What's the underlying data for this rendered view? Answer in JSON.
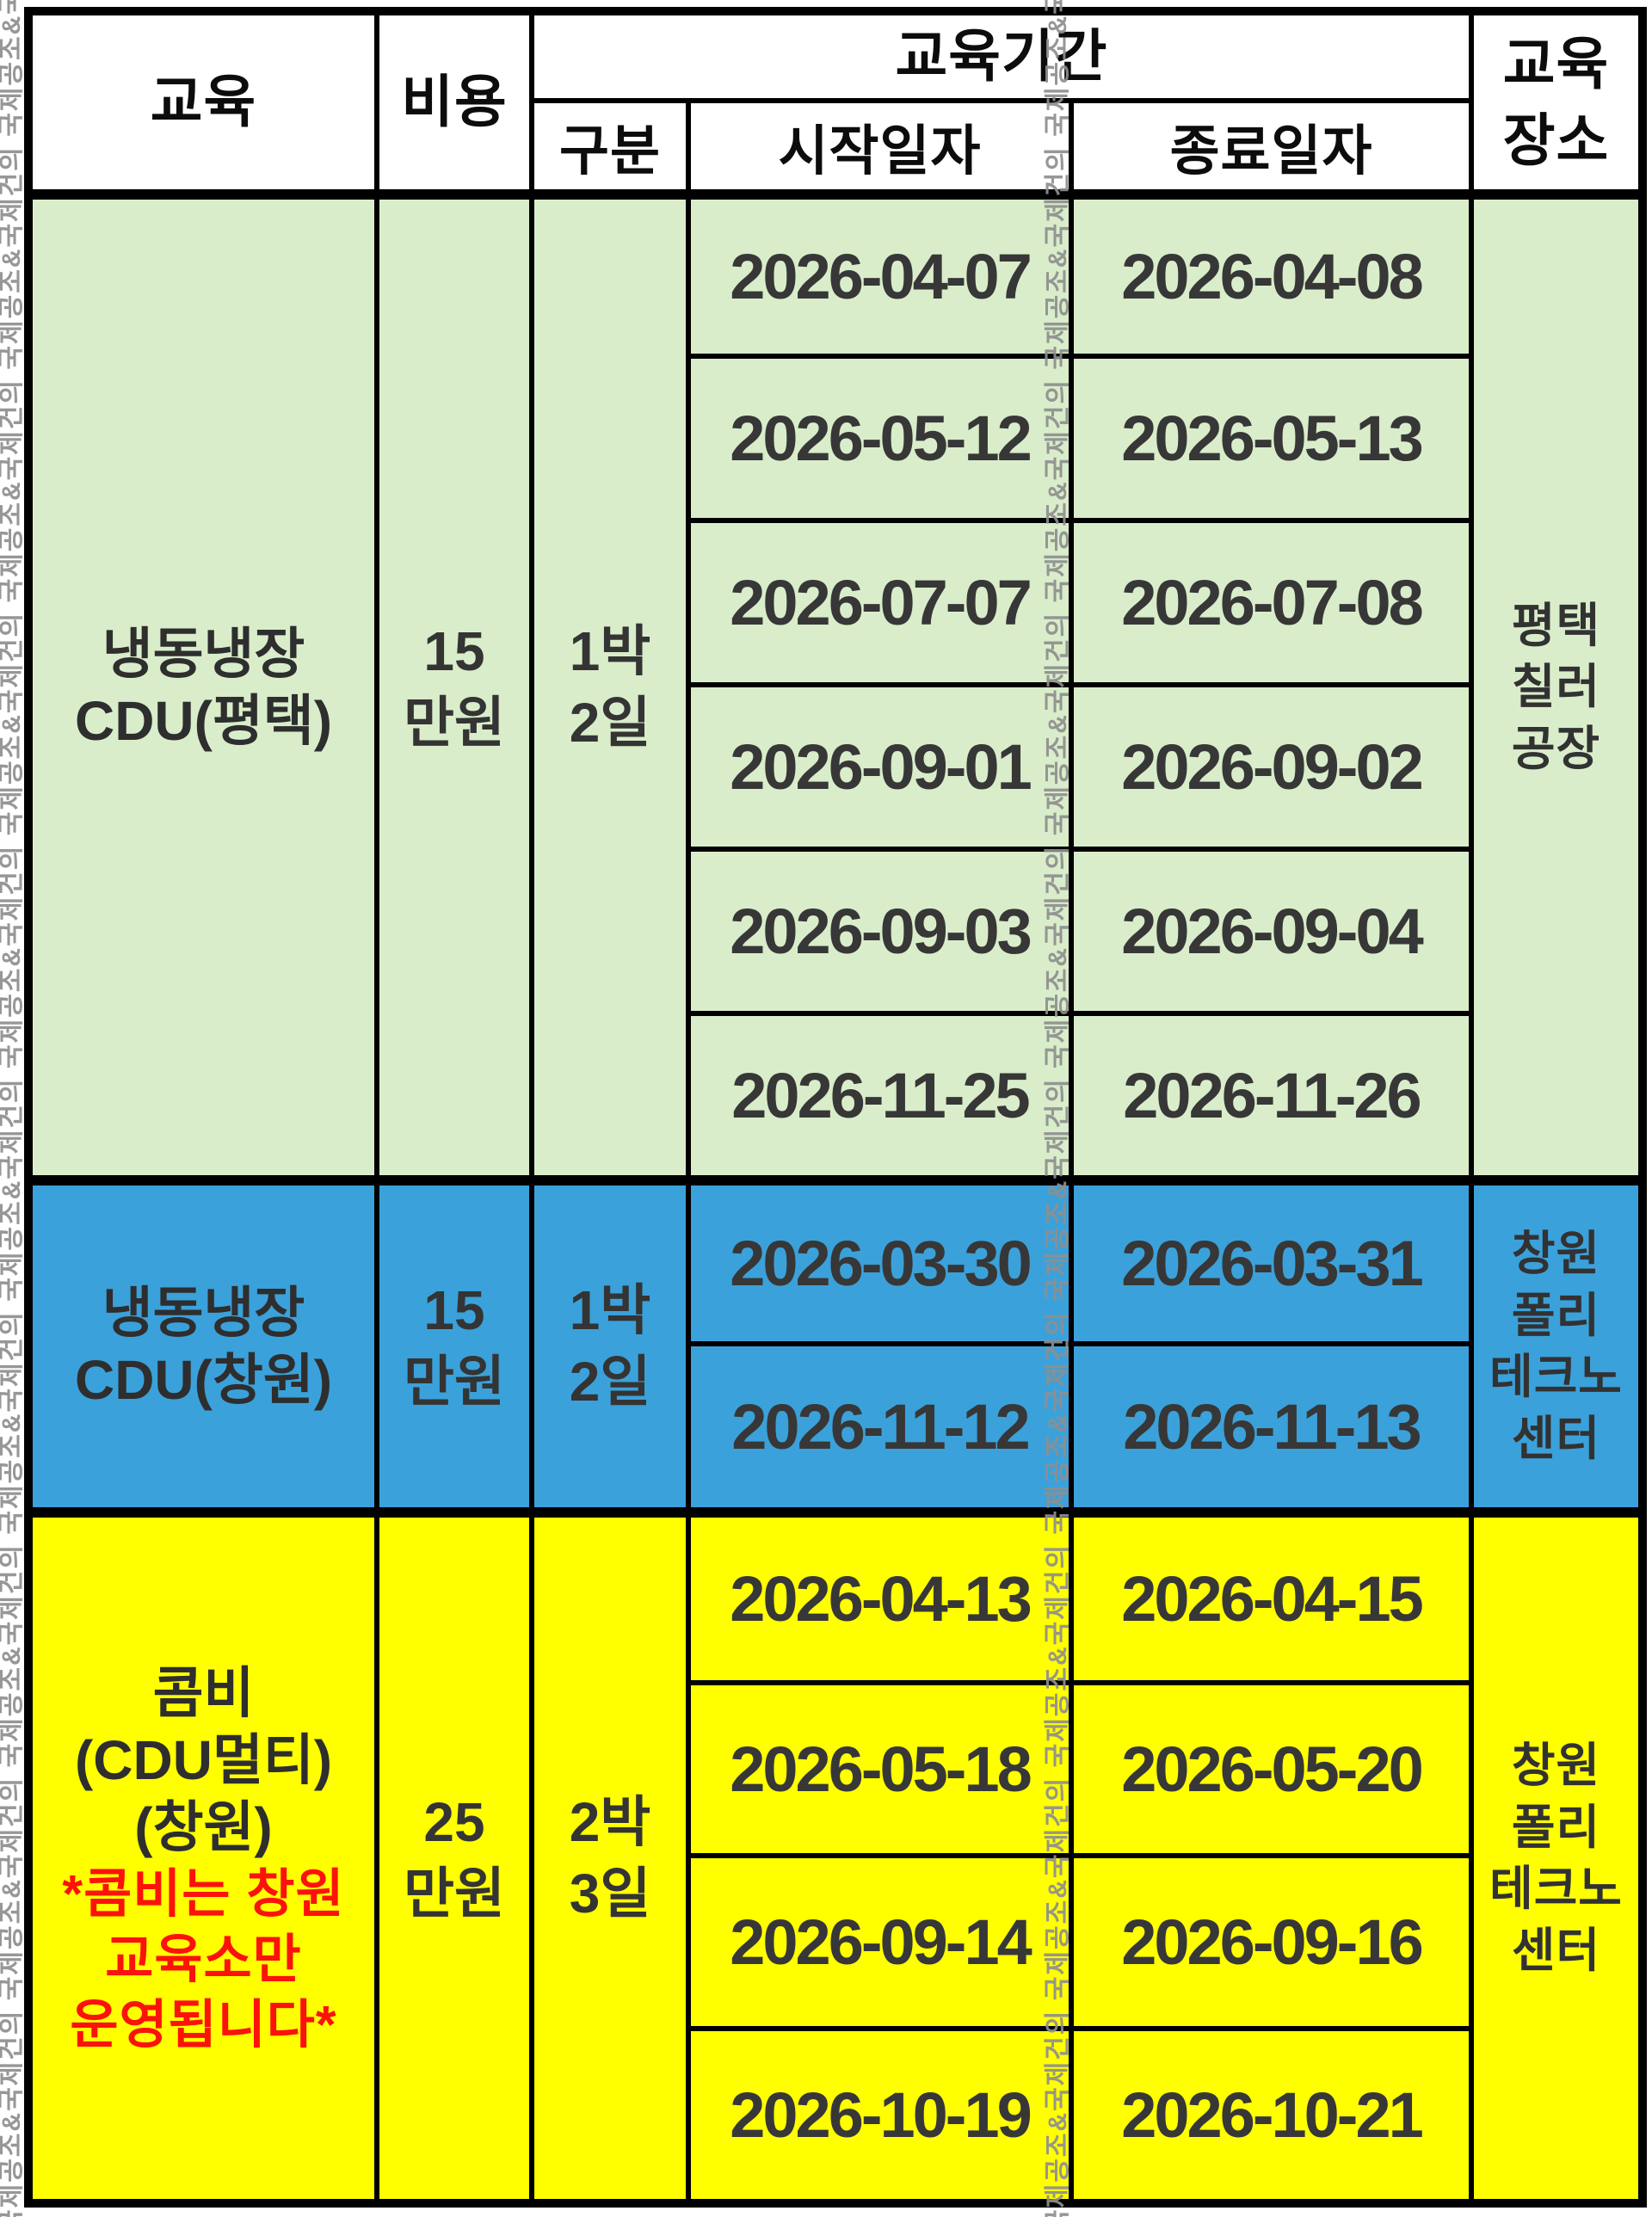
{
  "header": {
    "education": "교육",
    "cost": "비용",
    "period": "교육기간",
    "category": "구분",
    "start_date": "시작일자",
    "end_date": "종료일자",
    "location_line1": "교육",
    "location_line2": "장소"
  },
  "sections": [
    {
      "name_lines": [
        "냉동냉장",
        "CDU(평택)"
      ],
      "cost_lines": [
        "15",
        "만원"
      ],
      "category_lines": [
        "1박",
        "2일"
      ],
      "location_lines": [
        "평택",
        "칠러",
        "공장"
      ],
      "bg": "#d9edca",
      "rows": [
        {
          "start": "2026-04-07",
          "end": "2026-04-08"
        },
        {
          "start": "2026-05-12",
          "end": "2026-05-13"
        },
        {
          "start": "2026-07-07",
          "end": "2026-07-08"
        },
        {
          "start": "2026-09-01",
          "end": "2026-09-02"
        },
        {
          "start": "2026-09-03",
          "end": "2026-09-04"
        },
        {
          "start": "2026-11-25",
          "end": "2026-11-26"
        }
      ]
    },
    {
      "name_lines": [
        "냉동냉장",
        "CDU(창원)"
      ],
      "cost_lines": [
        "15",
        "만원"
      ],
      "category_lines": [
        "1박",
        "2일"
      ],
      "location_lines": [
        "창원",
        "폴리",
        "테크노",
        "센터"
      ],
      "bg": "#3ba1da",
      "rows": [
        {
          "start": "2026-03-30",
          "end": "2026-03-31"
        },
        {
          "start": "2026-11-12",
          "end": "2026-11-13"
        }
      ]
    },
    {
      "name_lines": [
        "콤비",
        "(CDU멀티)",
        "(창원)"
      ],
      "note_lines": [
        "*콤비는 창원",
        "교육소만",
        "운영됩니다*"
      ],
      "note_color": "#fb120b",
      "cost_lines": [
        "25",
        "만원"
      ],
      "category_lines": [
        "2박",
        "3일"
      ],
      "location_lines": [
        "창원",
        "폴리",
        "테크노",
        "센터"
      ],
      "bg": "#ffff00",
      "rows": [
        {
          "start": "2026-04-13",
          "end": "2026-04-15"
        },
        {
          "start": "2026-05-18",
          "end": "2026-05-20"
        },
        {
          "start": "2026-09-14",
          "end": "2026-09-16"
        },
        {
          "start": "2026-10-19",
          "end": "2026-10-21"
        }
      ]
    }
  ],
  "watermark": {
    "text": "국제공조&국제건의 ",
    "color": "#8f8f8f"
  },
  "colors": {
    "border": "#000000",
    "header_bg": "#ffffff",
    "section_green": "#d9edca",
    "section_blue": "#3ba1da",
    "section_yellow": "#ffff00",
    "date_text": "#373737",
    "red_note": "#fb120b"
  }
}
